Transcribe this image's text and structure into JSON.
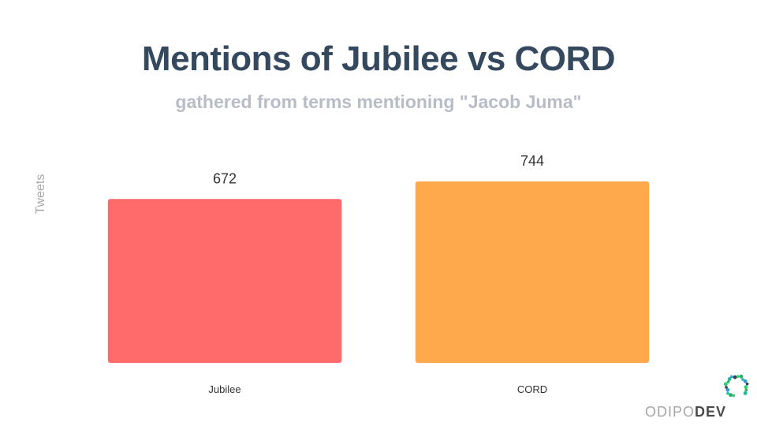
{
  "chart_data": {
    "type": "bar",
    "title": "Mentions of Jubilee vs CORD",
    "subtitle": "gathered from terms mentioning \"Jacob Juma\"",
    "ylabel": "Tweets",
    "xlabel": "",
    "categories": [
      "Jubilee",
      "CORD"
    ],
    "values": [
      672,
      744
    ],
    "colors": [
      "#ff6b6b",
      "#ffa94d"
    ],
    "ylim": [
      0,
      744
    ],
    "grid": false,
    "legend": "none"
  },
  "branding": {
    "logo_prefix": "ODIPO",
    "logo_suffix": "DEV",
    "logo_colors": [
      "#2ecc71",
      "#27ae60",
      "#1abc9c",
      "#3498db",
      "#2c3e50"
    ]
  }
}
